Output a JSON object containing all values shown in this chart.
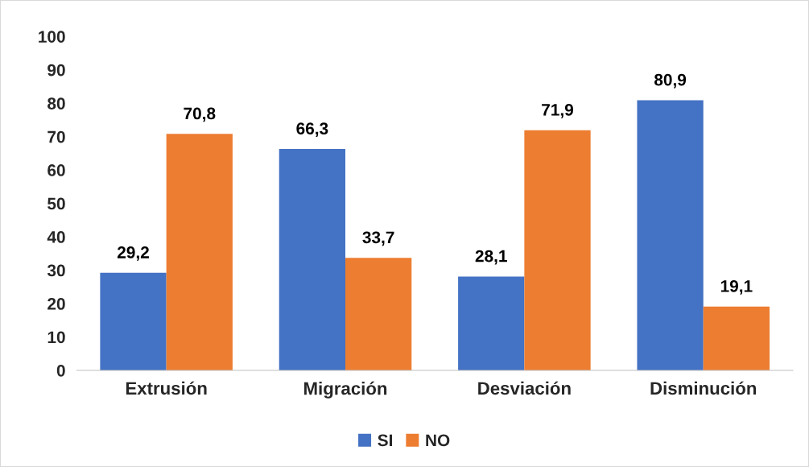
{
  "chart_data": {
    "type": "bar",
    "categories": [
      "Extrusión",
      "Migración",
      "Desviación",
      "Disminución"
    ],
    "series": [
      {
        "name": "SI",
        "color": "#4472c4",
        "values": [
          29.2,
          66.3,
          28.1,
          80.9
        ],
        "value_labels": [
          "29,2",
          "66,3",
          "28,1",
          "80,9"
        ]
      },
      {
        "name": "NO",
        "color": "#ed7d31",
        "values": [
          70.8,
          33.7,
          71.9,
          19.1
        ],
        "value_labels": [
          "70,8",
          "33,7",
          "71,9",
          "19,1"
        ]
      }
    ],
    "ylim": [
      0,
      100
    ],
    "yticks": [
      0,
      10,
      20,
      30,
      40,
      50,
      60,
      70,
      80,
      90,
      100
    ],
    "grid": false,
    "legend": "bottom"
  }
}
